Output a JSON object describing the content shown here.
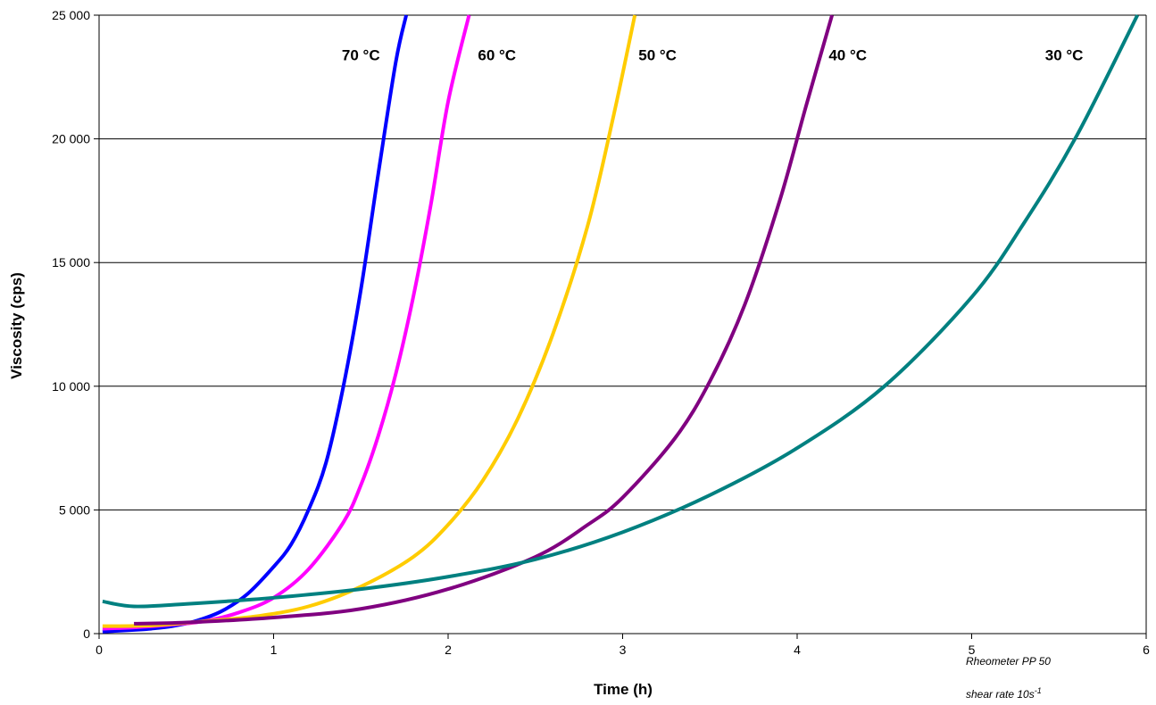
{
  "chart_data": {
    "type": "line",
    "xlabel": "Time (h)",
    "ylabel": "Viscosity (cps)",
    "xlim": [
      0,
      6
    ],
    "ylim": [
      0,
      25000
    ],
    "x_ticks": [
      0,
      1,
      2,
      3,
      4,
      5,
      6
    ],
    "y_ticks": [
      0,
      5000,
      10000,
      15000,
      20000,
      25000
    ],
    "y_tick_labels": [
      "0",
      "5 000",
      "10 000",
      "15 000",
      "20 000",
      "25 000"
    ],
    "grid": "horizontal",
    "annotations": {
      "instrument": "Rheometer PP 50",
      "shear_rate_prefix": "shear rate 10s",
      "shear_rate_exponent": "-1"
    },
    "series": [
      {
        "label": "70 °C",
        "color": "#0000ff",
        "x": [
          0.02,
          0.2,
          0.3,
          0.42,
          0.55,
          0.7,
          0.85,
          1.0,
          1.1,
          1.2,
          1.3,
          1.4,
          1.5,
          1.6,
          1.7,
          1.76
        ],
        "y": [
          80,
          150,
          200,
          300,
          500,
          900,
          1600,
          2700,
          3600,
          5000,
          6900,
          10000,
          13900,
          18600,
          23100,
          25000
        ]
      },
      {
        "label": "60 °C",
        "color": "#ff00ff",
        "x": [
          0.02,
          0.2,
          0.4,
          0.6,
          0.8,
          1.0,
          1.2,
          1.4,
          1.5,
          1.6,
          1.7,
          1.8,
          1.9,
          2.0,
          2.12
        ],
        "y": [
          200,
          250,
          350,
          500,
          850,
          1450,
          2600,
          4500,
          6000,
          8000,
          10500,
          13600,
          17300,
          21500,
          25000
        ]
      },
      {
        "label": "50 °C",
        "color": "#ffcc00",
        "x": [
          0.02,
          0.3,
          0.6,
          0.9,
          1.2,
          1.5,
          1.8,
          2.0,
          2.2,
          2.4,
          2.6,
          2.8,
          2.95,
          3.07
        ],
        "y": [
          300,
          330,
          500,
          700,
          1100,
          1900,
          3100,
          4400,
          6200,
          8700,
          12100,
          16500,
          21000,
          25000
        ]
      },
      {
        "label": "40 °C",
        "color": "#800080",
        "x": [
          0.2,
          0.5,
          1.0,
          1.5,
          2.0,
          2.5,
          2.8,
          3.0,
          3.3,
          3.5,
          3.7,
          3.9,
          4.05,
          4.2
        ],
        "y": [
          400,
          450,
          650,
          1000,
          1800,
          3100,
          4400,
          5500,
          7900,
          10200,
          13300,
          17500,
          21300,
          25000
        ]
      },
      {
        "label": "30 °C",
        "color": "#008080",
        "x": [
          0.02,
          0.2,
          0.5,
          1.0,
          1.5,
          2.0,
          2.5,
          3.0,
          3.5,
          4.0,
          4.5,
          5.0,
          5.3,
          5.6,
          5.95
        ],
        "y": [
          1300,
          1100,
          1200,
          1450,
          1800,
          2300,
          3000,
          4100,
          5600,
          7500,
          10000,
          13600,
          16600,
          20100,
          25000
        ]
      }
    ]
  }
}
